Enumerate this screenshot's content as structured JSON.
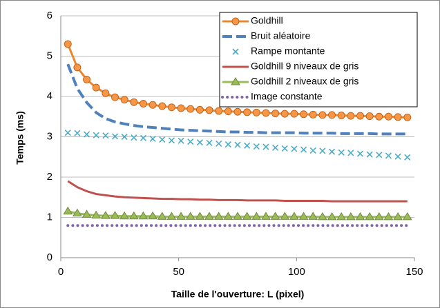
{
  "chart_data": {
    "type": "line",
    "xlabel": "Taille de l'ouverture: L (pixel)",
    "ylabel": "Temps (ms)",
    "x": [
      3,
      7,
      11,
      15,
      19,
      23,
      27,
      31,
      35,
      39,
      43,
      47,
      51,
      55,
      59,
      63,
      67,
      71,
      75,
      79,
      83,
      87,
      91,
      95,
      99,
      103,
      107,
      111,
      115,
      119,
      123,
      127,
      131,
      135,
      139,
      143,
      147
    ],
    "xlim": [
      0,
      150
    ],
    "xticks": [
      0,
      50,
      100,
      150
    ],
    "ylim": [
      0,
      6
    ],
    "yticks": [
      0,
      1,
      2,
      3,
      4,
      5,
      6
    ],
    "grid": true,
    "legend": "upper right",
    "series": [
      {
        "name": "Goldhill",
        "color": "#e8872e",
        "marker": "circle",
        "line": "solid",
        "values": [
          5.3,
          4.72,
          4.42,
          4.22,
          4.08,
          3.98,
          3.92,
          3.86,
          3.82,
          3.79,
          3.76,
          3.73,
          3.71,
          3.69,
          3.67,
          3.66,
          3.64,
          3.63,
          3.62,
          3.61,
          3.6,
          3.59,
          3.58,
          3.57,
          3.57,
          3.56,
          3.55,
          3.54,
          3.54,
          3.53,
          3.52,
          3.52,
          3.51,
          3.5,
          3.5,
          3.49,
          3.48
        ]
      },
      {
        "name": "Bruit aléatoire",
        "color": "#4f81bd",
        "marker": null,
        "line": "dashed",
        "values": [
          4.8,
          4.2,
          3.85,
          3.6,
          3.45,
          3.37,
          3.32,
          3.28,
          3.25,
          3.23,
          3.21,
          3.19,
          3.17,
          3.16,
          3.15,
          3.14,
          3.13,
          3.12,
          3.12,
          3.11,
          3.11,
          3.1,
          3.1,
          3.1,
          3.1,
          3.09,
          3.09,
          3.09,
          3.09,
          3.08,
          3.08,
          3.08,
          3.08,
          3.07,
          3.07,
          3.07,
          3.07
        ]
      },
      {
        "name": "Rampe montante",
        "color": "#4bacc6",
        "marker": "x",
        "line": "none",
        "values": [
          3.1,
          3.09,
          3.06,
          3.04,
          3.03,
          3.01,
          3.0,
          2.98,
          2.97,
          2.95,
          2.93,
          2.91,
          2.9,
          2.88,
          2.86,
          2.85,
          2.83,
          2.81,
          2.8,
          2.78,
          2.76,
          2.75,
          2.73,
          2.71,
          2.7,
          2.68,
          2.66,
          2.65,
          2.63,
          2.61,
          2.6,
          2.58,
          2.56,
          2.55,
          2.53,
          2.51,
          2.49
        ]
      },
      {
        "name": "Goldhill 9 niveaux de gris",
        "color": "#c0504d",
        "marker": null,
        "line": "solid",
        "values": [
          1.9,
          1.75,
          1.65,
          1.58,
          1.55,
          1.52,
          1.5,
          1.49,
          1.48,
          1.47,
          1.46,
          1.46,
          1.45,
          1.45,
          1.44,
          1.44,
          1.43,
          1.43,
          1.43,
          1.42,
          1.42,
          1.42,
          1.42,
          1.41,
          1.41,
          1.41,
          1.41,
          1.41,
          1.4,
          1.4,
          1.4,
          1.4,
          1.4,
          1.4,
          1.4,
          1.4,
          1.4
        ]
      },
      {
        "name": "Goldhill 2 niveaux de gris",
        "color": "#9bbb59",
        "marker": "triangle",
        "line": "solid",
        "values": [
          1.15,
          1.1,
          1.07,
          1.05,
          1.04,
          1.04,
          1.03,
          1.03,
          1.03,
          1.03,
          1.02,
          1.02,
          1.02,
          1.02,
          1.02,
          1.02,
          1.02,
          1.02,
          1.02,
          1.02,
          1.02,
          1.02,
          1.02,
          1.02,
          1.02,
          1.02,
          1.02,
          1.01,
          1.01,
          1.01,
          1.01,
          1.01,
          1.01,
          1.01,
          1.01,
          1.01,
          1.01
        ]
      },
      {
        "name": "Image constante",
        "color": "#8064a2",
        "marker": null,
        "line": "dotted",
        "values": [
          0.8,
          0.8,
          0.8,
          0.8,
          0.8,
          0.8,
          0.8,
          0.8,
          0.8,
          0.8,
          0.8,
          0.8,
          0.8,
          0.8,
          0.8,
          0.8,
          0.8,
          0.8,
          0.8,
          0.8,
          0.8,
          0.8,
          0.8,
          0.8,
          0.8,
          0.8,
          0.8,
          0.8,
          0.8,
          0.8,
          0.8,
          0.8,
          0.8,
          0.8,
          0.8,
          0.8,
          0.8
        ]
      }
    ]
  }
}
